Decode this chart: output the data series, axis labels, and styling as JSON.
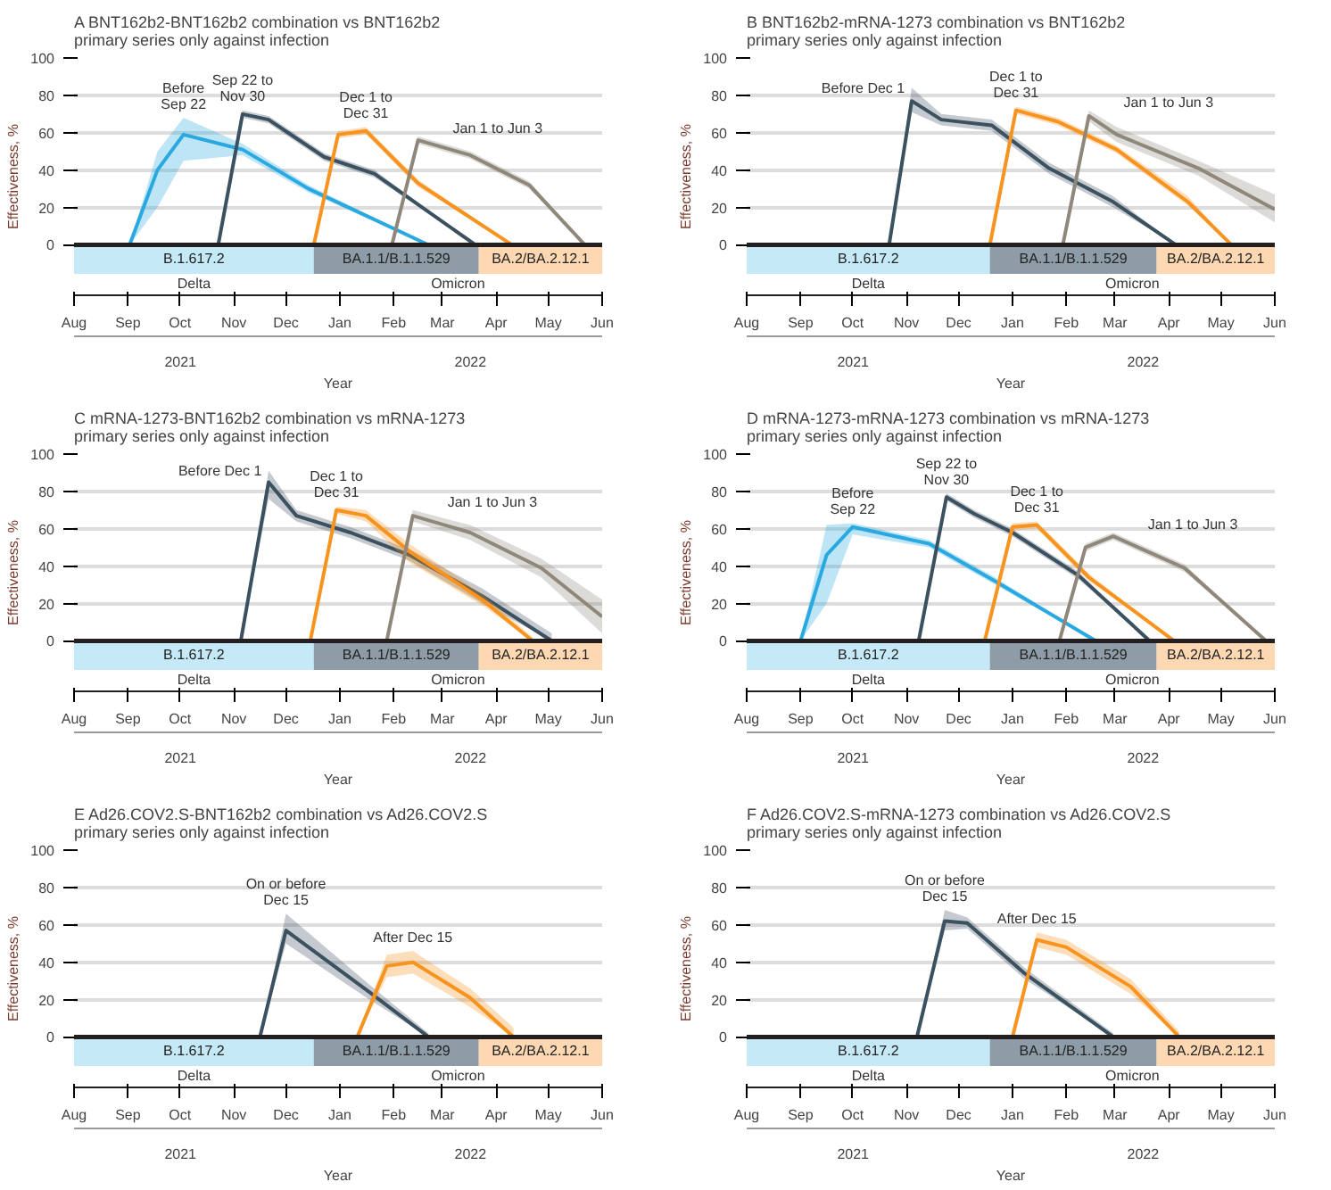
{
  "chart_data": [
    {
      "type": "line",
      "title": "BNT162b2-BNT162b2 combination vs BNT162b2 primary series only against infection",
      "xlabel": "Year",
      "ylabel": "Effectiveness, %",
      "annotations": [
        "A",
        "Delta",
        "Omicron",
        "2021",
        "2022"
      ],
      "xlim": [
        "2021-08-01",
        "2022-06-01"
      ],
      "ylim": [
        -27,
        100
      ],
      "yticks": [
        0,
        20,
        40,
        60,
        80,
        100
      ],
      "grid": "y",
      "xticks": [
        {
          "value": "2021-08-01",
          "label": "Aug"
        },
        {
          "value": "2021-09-01",
          "label": "Sep"
        },
        {
          "value": "2021-10-01",
          "label": "Oct"
        },
        {
          "value": "2021-11-01",
          "label": "Nov"
        },
        {
          "value": "2021-12-01",
          "label": "Dec"
        },
        {
          "value": "2022-01-01",
          "label": "Jan"
        },
        {
          "value": "2022-02-01",
          "label": "Feb"
        },
        {
          "value": "2022-03-01",
          "label": "Mar"
        },
        {
          "value": "2022-04-01",
          "label": "Apr"
        },
        {
          "value": "2022-05-01",
          "label": "May"
        },
        {
          "value": "2022-06-01",
          "label": "Jun"
        }
      ],
      "ref_lines": [
        {
          "axis": "y",
          "value": 0,
          "color": "#231f20"
        }
      ],
      "bands": [
        {
          "axis": "x",
          "from": "2021-08-01",
          "to": "2021-12-17",
          "label": "B.1.617.2",
          "color": "#c6e9f8"
        },
        {
          "axis": "x",
          "from": "2021-12-17",
          "to": "2022-03-22",
          "label": "BA.1.1/B.1.1.529",
          "color": "#8d9ca6"
        },
        {
          "axis": "x",
          "from": "2022-03-22",
          "to": "2022-06-01",
          "label": "BA.2/BA.2.12.1",
          "color": "#fdd8b3"
        }
      ],
      "series": [
        {
          "name": "Before Sep 22",
          "color": "#29a9e0",
          "x": [
            "2021-09-02",
            "2021-09-18",
            "2021-10-03",
            "2021-11-06",
            "2021-12-14",
            "2022-02-21"
          ],
          "values": [
            0,
            40,
            59,
            51,
            30,
            0
          ],
          "lower": [
            0,
            20,
            45,
            48,
            28,
            0
          ],
          "upper": [
            0,
            50,
            68,
            54,
            32,
            0
          ]
        },
        {
          "name": "Sep 22 to Nov 30",
          "color": "#3b5160",
          "x": [
            "2021-10-23",
            "2021-11-06",
            "2021-11-21",
            "2021-12-23",
            "2022-01-21",
            "2022-03-20"
          ],
          "values": [
            0,
            70,
            67,
            47,
            38,
            0
          ],
          "lower": [
            0,
            68,
            65,
            45,
            36,
            0
          ],
          "upper": [
            0,
            72,
            69,
            49,
            40,
            0
          ]
        },
        {
          "name": "Dec 1 to Dec 31",
          "color": "#f7931e",
          "x": [
            "2021-12-17",
            "2021-12-31",
            "2022-01-16",
            "2022-02-15",
            "2022-04-10"
          ],
          "values": [
            0,
            59,
            61,
            33,
            0
          ],
          "lower": [
            0,
            57,
            59,
            31,
            0
          ],
          "upper": [
            0,
            61,
            63,
            35,
            0
          ]
        },
        {
          "name": "Jan 1 to Jun 3",
          "color": "#8f877a",
          "x": [
            "2022-01-31",
            "2022-02-15",
            "2022-03-17",
            "2022-04-20",
            "2022-05-22"
          ],
          "values": [
            0,
            56,
            48,
            32,
            0
          ],
          "lower": [
            0,
            54,
            46,
            30,
            0
          ],
          "upper": [
            0,
            58,
            50,
            34,
            0
          ]
        }
      ]
    },
    {
      "type": "line",
      "title": "BNT162b2-mRNA-1273 combination vs BNT162b2 primary series only against infection",
      "xlabel": "Year",
      "ylabel": "Effectiveness, %",
      "annotations": [
        "B",
        "Delta",
        "Omicron",
        "2021",
        "2022"
      ],
      "xlim": [
        "2021-08-01",
        "2022-06-01"
      ],
      "ylim": [
        -27,
        100
      ],
      "yticks": [
        0,
        20,
        40,
        60,
        80,
        100
      ],
      "grid": "y",
      "xticks": [
        {
          "value": "2021-08-01",
          "label": "Aug"
        },
        {
          "value": "2021-09-01",
          "label": "Sep"
        },
        {
          "value": "2021-10-01",
          "label": "Oct"
        },
        {
          "value": "2021-11-01",
          "label": "Nov"
        },
        {
          "value": "2021-12-01",
          "label": "Dec"
        },
        {
          "value": "2022-01-01",
          "label": "Jan"
        },
        {
          "value": "2022-02-01",
          "label": "Feb"
        },
        {
          "value": "2022-03-01",
          "label": "Mar"
        },
        {
          "value": "2022-04-01",
          "label": "Apr"
        },
        {
          "value": "2022-05-01",
          "label": "May"
        },
        {
          "value": "2022-06-01",
          "label": "Jun"
        }
      ],
      "ref_lines": [
        {
          "axis": "y",
          "value": 0,
          "color": "#231f20"
        }
      ],
      "bands": [
        {
          "axis": "x",
          "from": "2021-08-01",
          "to": "2021-12-19",
          "label": "B.1.617.2",
          "color": "#c6e9f8"
        },
        {
          "axis": "x",
          "from": "2021-12-19",
          "to": "2022-03-25",
          "label": "BA.1.1/B.1.1.529",
          "color": "#8d9ca6"
        },
        {
          "axis": "x",
          "from": "2022-03-25",
          "to": "2022-06-01",
          "label": "BA.2/BA.2.12.1",
          "color": "#fdd8b3"
        }
      ],
      "series": [
        {
          "name": "Before Dec 1",
          "color": "#3b5160",
          "x": [
            "2021-10-22",
            "2021-11-04",
            "2021-11-21",
            "2021-12-20",
            "2022-01-22",
            "2022-02-28",
            "2022-04-05"
          ],
          "values": [
            0,
            77,
            67,
            64,
            41,
            23,
            0
          ],
          "lower": [
            0,
            71,
            64,
            61,
            38,
            20,
            0
          ],
          "upper": [
            0,
            84,
            70,
            67,
            44,
            26,
            0
          ]
        },
        {
          "name": "Dec 1 to Dec 31",
          "color": "#f7931e",
          "x": [
            "2021-12-19",
            "2022-01-03",
            "2022-01-27",
            "2022-03-02",
            "2022-04-12",
            "2022-05-07"
          ],
          "values": [
            0,
            72,
            66,
            51,
            23,
            0
          ],
          "lower": [
            0,
            70,
            64,
            49,
            21,
            0
          ],
          "upper": [
            0,
            74,
            68,
            53,
            26,
            0
          ]
        },
        {
          "name": "Jan 1 to Jun 3",
          "color": "#8f877a",
          "x": [
            "2022-01-30",
            "2022-02-14",
            "2022-03-02",
            "2022-04-18",
            "2022-06-01"
          ],
          "values": [
            0,
            69,
            59,
            41,
            19
          ],
          "lower": [
            0,
            66,
            55,
            37,
            12
          ],
          "upper": [
            0,
            72,
            63,
            45,
            27
          ]
        }
      ]
    },
    {
      "type": "line",
      "title": "mRNA-1273-BNT162b2 combination vs mRNA-1273 primary series only against infection",
      "xlabel": "Year",
      "ylabel": "Effectiveness, %",
      "annotations": [
        "C",
        "Delta",
        "Omicron",
        "2021",
        "2022"
      ],
      "xlim": [
        "2021-08-01",
        "2022-06-01"
      ],
      "ylim": [
        -27,
        100
      ],
      "yticks": [
        0,
        20,
        40,
        60,
        80,
        100
      ],
      "grid": "y",
      "xticks": [
        {
          "value": "2021-08-01",
          "label": "Aug"
        },
        {
          "value": "2021-09-01",
          "label": "Sep"
        },
        {
          "value": "2021-10-01",
          "label": "Oct"
        },
        {
          "value": "2021-11-01",
          "label": "Nov"
        },
        {
          "value": "2021-12-01",
          "label": "Dec"
        },
        {
          "value": "2022-01-01",
          "label": "Jan"
        },
        {
          "value": "2022-02-01",
          "label": "Feb"
        },
        {
          "value": "2022-03-01",
          "label": "Mar"
        },
        {
          "value": "2022-04-01",
          "label": "Apr"
        },
        {
          "value": "2022-05-01",
          "label": "May"
        },
        {
          "value": "2022-06-01",
          "label": "Jun"
        }
      ],
      "ref_lines": [
        {
          "axis": "y",
          "value": 0,
          "color": "#231f20"
        }
      ],
      "bands": [
        {
          "axis": "x",
          "from": "2021-08-01",
          "to": "2021-12-17",
          "label": "B.1.617.2",
          "color": "#c6e9f8"
        },
        {
          "axis": "x",
          "from": "2021-12-17",
          "to": "2022-03-22",
          "label": "BA.1.1/B.1.1.529",
          "color": "#8d9ca6"
        },
        {
          "axis": "x",
          "from": "2022-03-22",
          "to": "2022-06-01",
          "label": "BA.2/BA.2.12.1",
          "color": "#fdd8b3"
        }
      ],
      "series": [
        {
          "name": "Before Dec 1",
          "color": "#3b5160",
          "x": [
            "2021-11-05",
            "2021-11-21",
            "2021-12-07",
            "2022-01-07",
            "2022-02-10",
            "2022-03-24",
            "2022-05-03"
          ],
          "values": [
            0,
            85,
            67,
            58,
            46,
            24,
            0
          ],
          "lower": [
            0,
            76,
            64,
            55,
            43,
            20,
            0
          ],
          "upper": [
            0,
            91,
            70,
            61,
            49,
            28,
            4
          ]
        },
        {
          "name": "Dec 1 to Dec 31",
          "color": "#f7931e",
          "x": [
            "2021-12-15",
            "2021-12-30",
            "2022-01-16",
            "2022-02-10",
            "2022-03-24",
            "2022-04-22"
          ],
          "values": [
            0,
            70,
            67,
            48,
            22,
            0
          ],
          "lower": [
            0,
            68,
            64,
            42,
            19,
            0
          ],
          "upper": [
            0,
            72,
            70,
            52,
            25,
            2
          ]
        },
        {
          "name": "Jan 1 to Jun 3",
          "color": "#8f877a",
          "x": [
            "2022-01-28",
            "2022-02-12",
            "2022-03-17",
            "2022-04-27",
            "2022-06-01"
          ],
          "values": [
            0,
            67,
            58,
            39,
            13
          ],
          "lower": [
            0,
            64,
            54,
            34,
            4
          ],
          "upper": [
            0,
            70,
            62,
            44,
            22
          ]
        }
      ]
    },
    {
      "type": "line",
      "title": "mRNA-1273-mRNA-1273 combination vs mRNA-1273 primary series only against infection",
      "xlabel": "Year",
      "ylabel": "Effectiveness, %",
      "annotations": [
        "D",
        "Delta",
        "Omicron",
        "2021",
        "2022"
      ],
      "xlim": [
        "2021-08-01",
        "2022-06-01"
      ],
      "ylim": [
        -27,
        100
      ],
      "yticks": [
        0,
        20,
        40,
        60,
        80,
        100
      ],
      "grid": "y",
      "xticks": [
        {
          "value": "2021-08-01",
          "label": "Aug"
        },
        {
          "value": "2021-09-01",
          "label": "Sep"
        },
        {
          "value": "2021-10-01",
          "label": "Oct"
        },
        {
          "value": "2021-11-01",
          "label": "Nov"
        },
        {
          "value": "2021-12-01",
          "label": "Dec"
        },
        {
          "value": "2022-01-01",
          "label": "Jan"
        },
        {
          "value": "2022-02-01",
          "label": "Feb"
        },
        {
          "value": "2022-03-01",
          "label": "Mar"
        },
        {
          "value": "2022-04-01",
          "label": "Apr"
        },
        {
          "value": "2022-05-01",
          "label": "May"
        },
        {
          "value": "2022-06-01",
          "label": "Jun"
        }
      ],
      "ref_lines": [
        {
          "axis": "y",
          "value": 0,
          "color": "#231f20"
        }
      ],
      "bands": [
        {
          "axis": "x",
          "from": "2021-08-01",
          "to": "2021-12-19",
          "label": "B.1.617.2",
          "color": "#c6e9f8"
        },
        {
          "axis": "x",
          "from": "2021-12-19",
          "to": "2022-03-25",
          "label": "BA.1.1/B.1.1.529",
          "color": "#8d9ca6"
        },
        {
          "axis": "x",
          "from": "2022-03-25",
          "to": "2022-06-01",
          "label": "BA.2/BA.2.12.1",
          "color": "#fdd8b3"
        }
      ],
      "series": [
        {
          "name": "Before Sep 22",
          "color": "#29a9e0",
          "x": [
            "2021-09-01",
            "2021-09-16",
            "2021-10-01",
            "2021-11-14",
            "2021-12-22",
            "2022-02-18"
          ],
          "values": [
            0,
            46,
            61,
            52,
            32,
            0
          ],
          "lower": [
            0,
            20,
            57,
            50,
            30,
            0
          ],
          "upper": [
            0,
            62,
            63,
            54,
            34,
            0
          ]
        },
        {
          "name": "Sep 22 to Nov 30",
          "color": "#3b5160",
          "x": [
            "2021-11-08",
            "2021-11-24",
            "2021-12-10",
            "2022-01-01",
            "2022-02-08",
            "2022-03-21"
          ],
          "values": [
            0,
            77,
            68,
            58,
            35,
            0
          ],
          "lower": [
            0,
            75,
            66,
            56,
            33,
            0
          ],
          "upper": [
            0,
            79,
            70,
            60,
            37,
            0
          ]
        },
        {
          "name": "Dec 1 to Dec 31",
          "color": "#f7931e",
          "x": [
            "2021-12-16",
            "2022-01-01",
            "2022-01-15",
            "2022-02-14",
            "2022-04-04"
          ],
          "values": [
            0,
            61,
            62,
            34,
            0
          ],
          "lower": [
            0,
            59,
            60,
            32,
            0
          ],
          "upper": [
            0,
            63,
            64,
            36,
            0
          ]
        },
        {
          "name": "Jan 1 to Jun 3",
          "color": "#8f877a",
          "x": [
            "2022-01-28",
            "2022-02-12",
            "2022-02-28",
            "2022-04-10",
            "2022-05-27"
          ],
          "values": [
            0,
            50,
            56,
            39,
            0
          ],
          "lower": [
            0,
            48,
            54,
            37,
            0
          ],
          "upper": [
            0,
            52,
            58,
            41,
            0
          ]
        }
      ]
    },
    {
      "type": "line",
      "title": "Ad26.COV2.S-BNT162b2 combination vs Ad26.COV2.S primary series only against infection",
      "xlabel": "Year",
      "ylabel": "Effectiveness, %",
      "annotations": [
        "E",
        "Delta",
        "Omicron",
        "2021",
        "2022"
      ],
      "xlim": [
        "2021-08-01",
        "2022-06-01"
      ],
      "ylim": [
        -27,
        100
      ],
      "yticks": [
        0,
        20,
        40,
        60,
        80,
        100
      ],
      "grid": "y",
      "xticks": [
        {
          "value": "2021-08-01",
          "label": "Aug"
        },
        {
          "value": "2021-09-01",
          "label": "Sep"
        },
        {
          "value": "2021-10-01",
          "label": "Oct"
        },
        {
          "value": "2021-11-01",
          "label": "Nov"
        },
        {
          "value": "2021-12-01",
          "label": "Dec"
        },
        {
          "value": "2022-01-01",
          "label": "Jan"
        },
        {
          "value": "2022-02-01",
          "label": "Feb"
        },
        {
          "value": "2022-03-01",
          "label": "Mar"
        },
        {
          "value": "2022-04-01",
          "label": "Apr"
        },
        {
          "value": "2022-05-01",
          "label": "May"
        },
        {
          "value": "2022-06-01",
          "label": "Jun"
        }
      ],
      "ref_lines": [
        {
          "axis": "y",
          "value": 0,
          "color": "#231f20"
        }
      ],
      "bands": [
        {
          "axis": "x",
          "from": "2021-08-01",
          "to": "2021-12-17",
          "label": "B.1.617.2",
          "color": "#c6e9f8"
        },
        {
          "axis": "x",
          "from": "2021-12-17",
          "to": "2022-03-22",
          "label": "BA.1.1/B.1.1.529",
          "color": "#8d9ca6"
        },
        {
          "axis": "x",
          "from": "2022-03-22",
          "to": "2022-06-01",
          "label": "BA.2/BA.2.12.1",
          "color": "#fdd8b3"
        }
      ],
      "series": [
        {
          "name": "On or before Dec 15",
          "color": "#3b5160",
          "x": [
            "2021-11-16",
            "2021-12-01",
            "2022-01-18",
            "2022-02-21"
          ],
          "values": [
            0,
            57,
            24,
            0
          ],
          "lower": [
            0,
            50,
            20,
            0
          ],
          "upper": [
            0,
            66,
            28,
            2
          ]
        },
        {
          "name": "After Dec 15",
          "color": "#f7931e",
          "x": [
            "2022-01-11",
            "2022-01-28",
            "2022-02-12",
            "2022-03-17",
            "2022-04-11"
          ],
          "values": [
            0,
            38,
            40,
            21,
            0
          ],
          "lower": [
            0,
            32,
            34,
            16,
            0
          ],
          "upper": [
            0,
            44,
            46,
            26,
            5
          ]
        }
      ]
    },
    {
      "type": "line",
      "title": "Ad26.COV2.S-mRNA-1273 combination vs Ad26.COV2.S primary series only against infection",
      "xlabel": "Year",
      "ylabel": "Effectiveness, %",
      "annotations": [
        "F",
        "Delta",
        "Omicron",
        "2021",
        "2022"
      ],
      "xlim": [
        "2021-08-01",
        "2022-06-01"
      ],
      "ylim": [
        -27,
        100
      ],
      "yticks": [
        0,
        20,
        40,
        60,
        80,
        100
      ],
      "grid": "y",
      "xticks": [
        {
          "value": "2021-08-01",
          "label": "Aug"
        },
        {
          "value": "2021-09-01",
          "label": "Sep"
        },
        {
          "value": "2021-10-01",
          "label": "Oct"
        },
        {
          "value": "2021-11-01",
          "label": "Nov"
        },
        {
          "value": "2021-12-01",
          "label": "Dec"
        },
        {
          "value": "2022-01-01",
          "label": "Jan"
        },
        {
          "value": "2022-02-01",
          "label": "Feb"
        },
        {
          "value": "2022-03-01",
          "label": "Mar"
        },
        {
          "value": "2022-04-01",
          "label": "Apr"
        },
        {
          "value": "2022-05-01",
          "label": "May"
        },
        {
          "value": "2022-06-01",
          "label": "Jun"
        }
      ],
      "ref_lines": [
        {
          "axis": "y",
          "value": 0,
          "color": "#231f20"
        }
      ],
      "bands": [
        {
          "axis": "x",
          "from": "2021-08-01",
          "to": "2021-12-19",
          "label": "B.1.617.2",
          "color": "#c6e9f8"
        },
        {
          "axis": "x",
          "from": "2021-12-19",
          "to": "2022-03-25",
          "label": "BA.1.1/B.1.1.529",
          "color": "#8d9ca6"
        },
        {
          "axis": "x",
          "from": "2022-03-25",
          "to": "2022-06-01",
          "label": "BA.2/BA.2.12.1",
          "color": "#fdd8b3"
        }
      ],
      "series": [
        {
          "name": "On or before Dec 15",
          "color": "#3b5160",
          "x": [
            "2021-11-07",
            "2021-11-23",
            "2021-12-06",
            "2022-01-08",
            "2022-02-28"
          ],
          "values": [
            0,
            62,
            61,
            34,
            0
          ],
          "lower": [
            0,
            57,
            58,
            31,
            0
          ],
          "upper": [
            0,
            68,
            64,
            37,
            2
          ]
        },
        {
          "name": "After Dec 15",
          "color": "#f7931e",
          "x": [
            "2022-01-01",
            "2022-01-15",
            "2022-02-01",
            "2022-03-10",
            "2022-04-07"
          ],
          "values": [
            0,
            52,
            48,
            27,
            0
          ],
          "lower": [
            0,
            48,
            44,
            23,
            0
          ],
          "upper": [
            0,
            56,
            52,
            31,
            3
          ]
        }
      ]
    }
  ]
}
